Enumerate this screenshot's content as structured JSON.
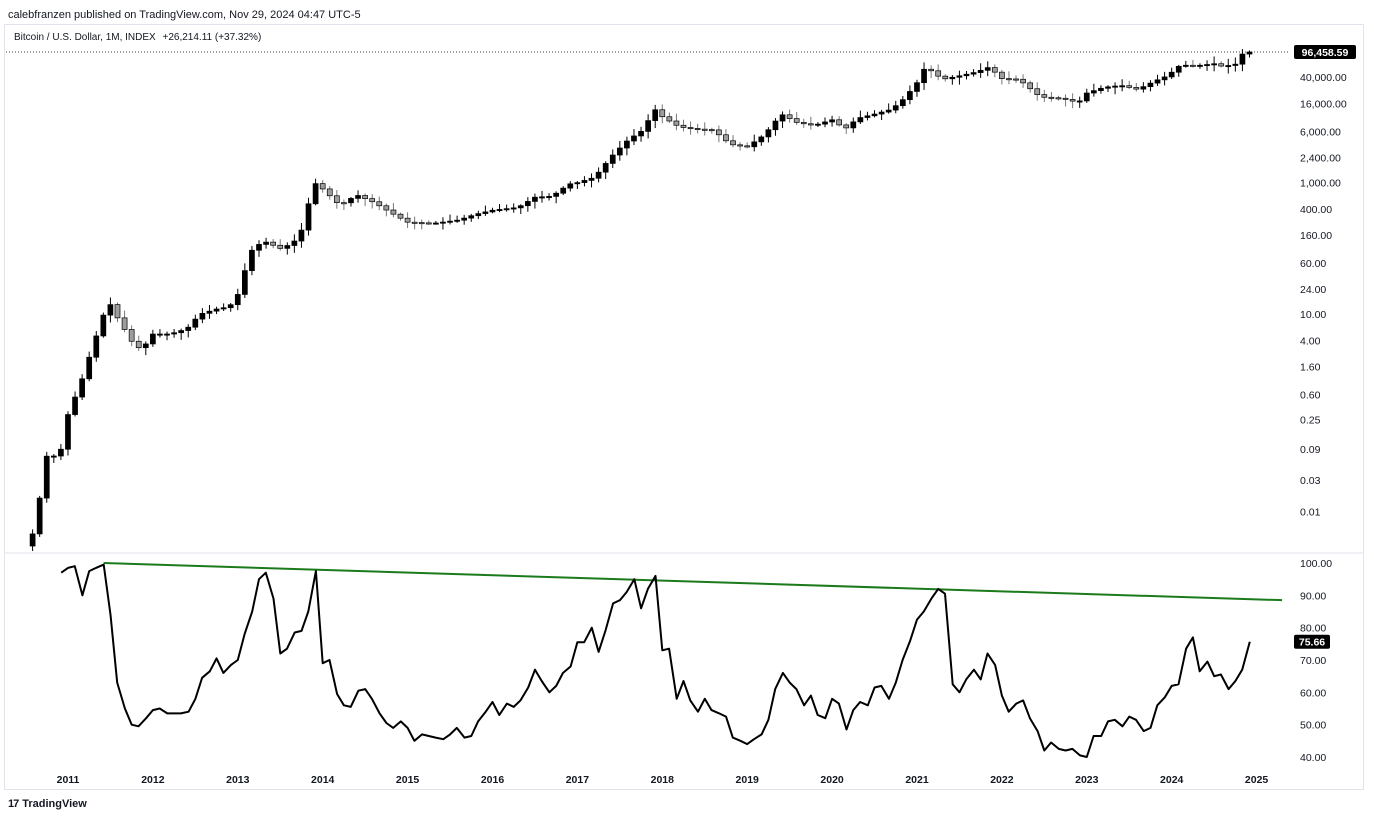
{
  "header": {
    "publisher_line": "calebfranzen published on TradingView.com, Nov 29, 2024 04:47 UTC-5"
  },
  "legend": {
    "symbol": "Bitcoin / U.S. Dollar, 1M, INDEX",
    "change": "+26,214.11 (+37.32%)"
  },
  "footer": {
    "logo_glyph": "17",
    "brand": "TradingView"
  },
  "colors": {
    "candle_up": "#000000",
    "candle_down": "#9e9e9e",
    "trendline": "#1b7a1b",
    "indicator_line": "#000000",
    "last_label_bg": "#000000"
  },
  "chart_data": [
    {
      "type": "candlestick",
      "scale": "log",
      "timeframe": "1M",
      "last_price_label": "96,458.59",
      "last_price": 96458.59,
      "y_ticks": [
        "40,000.00",
        "16,000.00",
        "6,000.00",
        "2,400.00",
        "1,000.00",
        "400.00",
        "160.00",
        "60.00",
        "24.00",
        "10.00",
        "4.00",
        "1.60",
        "0.60",
        "0.25",
        "0.09",
        "0.03",
        "0.01"
      ],
      "y_tick_values": [
        40000,
        16000,
        6000,
        2400,
        1000,
        400,
        160,
        60,
        24,
        10,
        4,
        1.6,
        0.6,
        0.25,
        0.09,
        0.03,
        0.01
      ],
      "x_ticks": [
        "2011",
        "2012",
        "2013",
        "2014",
        "2015",
        "2016",
        "2017",
        "2018",
        "2019",
        "2020",
        "2021",
        "2022",
        "2023",
        "2024",
        "2025"
      ],
      "x_tick_values": [
        2011,
        2012,
        2013,
        2014,
        2015,
        2016,
        2017,
        2018,
        2019,
        2020,
        2021,
        2022,
        2023,
        2024,
        2025
      ],
      "close_path": [
        [
          2010.5,
          0.003
        ],
        [
          2010.6,
          0.005
        ],
        [
          2010.75,
          0.07
        ],
        [
          2010.9,
          0.07
        ],
        [
          2011.0,
          0.3
        ],
        [
          2011.15,
          0.9
        ],
        [
          2011.3,
          3.5
        ],
        [
          2011.42,
          10
        ],
        [
          2011.5,
          14
        ],
        [
          2011.6,
          8
        ],
        [
          2011.7,
          5
        ],
        [
          2011.8,
          3
        ],
        [
          2011.9,
          3.3
        ],
        [
          2012.0,
          5
        ],
        [
          2012.2,
          5
        ],
        [
          2012.4,
          6
        ],
        [
          2012.55,
          10
        ],
        [
          2012.75,
          12
        ],
        [
          2012.9,
          13
        ],
        [
          2013.0,
          20
        ],
        [
          2013.15,
          90
        ],
        [
          2013.3,
          130
        ],
        [
          2013.5,
          100
        ],
        [
          2013.65,
          120
        ],
        [
          2013.75,
          190
        ],
        [
          2013.9,
          1000
        ],
        [
          2014.0,
          800
        ],
        [
          2014.2,
          450
        ],
        [
          2014.4,
          650
        ],
        [
          2014.6,
          500
        ],
        [
          2014.8,
          350
        ],
        [
          2015.0,
          250
        ],
        [
          2015.3,
          240
        ],
        [
          2015.6,
          270
        ],
        [
          2015.8,
          330
        ],
        [
          2016.0,
          380
        ],
        [
          2016.3,
          420
        ],
        [
          2016.5,
          600
        ],
        [
          2016.7,
          620
        ],
        [
          2016.9,
          950
        ],
        [
          2017.0,
          1000
        ],
        [
          2017.2,
          1200
        ],
        [
          2017.4,
          2500
        ],
        [
          2017.6,
          4500
        ],
        [
          2017.75,
          6000
        ],
        [
          2017.92,
          13000
        ],
        [
          2018.0,
          10000
        ],
        [
          2018.2,
          7000
        ],
        [
          2018.4,
          6500
        ],
        [
          2018.6,
          6300
        ],
        [
          2018.8,
          3800
        ],
        [
          2019.0,
          3500
        ],
        [
          2019.2,
          5300
        ],
        [
          2019.4,
          11000
        ],
        [
          2019.6,
          8000
        ],
        [
          2019.8,
          7500
        ],
        [
          2020.0,
          9000
        ],
        [
          2020.15,
          6500
        ],
        [
          2020.3,
          9500
        ],
        [
          2020.5,
          11000
        ],
        [
          2020.7,
          13000
        ],
        [
          2020.85,
          19000
        ],
        [
          2021.0,
          33000
        ],
        [
          2021.1,
          58000
        ],
        [
          2021.3,
          37000
        ],
        [
          2021.5,
          42000
        ],
        [
          2021.7,
          48000
        ],
        [
          2021.85,
          57000
        ],
        [
          2022.0,
          38000
        ],
        [
          2022.2,
          37000
        ],
        [
          2022.45,
          20000
        ],
        [
          2022.7,
          19000
        ],
        [
          2022.9,
          16500
        ],
        [
          2023.0,
          23000
        ],
        [
          2023.2,
          28000
        ],
        [
          2023.4,
          30000
        ],
        [
          2023.6,
          26000
        ],
        [
          2023.8,
          35000
        ],
        [
          2023.95,
          42000
        ],
        [
          2024.1,
          61000
        ],
        [
          2024.3,
          60000
        ],
        [
          2024.5,
          64000
        ],
        [
          2024.6,
          58000
        ],
        [
          2024.75,
          63000
        ],
        [
          2024.85,
          96458.59
        ]
      ]
    },
    {
      "type": "line",
      "last_value_label": "75.66",
      "last_value": 75.66,
      "y_ticks": [
        "100.00",
        "90.00",
        "80.00",
        "70.00",
        "60.00",
        "50.00",
        "40.00"
      ],
      "y_tick_values": [
        100,
        90,
        80,
        70,
        60,
        50,
        40
      ],
      "trendline": [
        [
          2011.42,
          100
        ],
        [
          2025.3,
          88.5
        ]
      ],
      "series": [
        {
          "values": [
            [
              2010.92,
              97
            ],
            [
              2011.0,
              98.5
            ],
            [
              2011.08,
              99
            ],
            [
              2011.17,
              90
            ],
            [
              2011.25,
              97.5
            ],
            [
              2011.33,
              98.5
            ],
            [
              2011.42,
              99.5
            ],
            [
              2011.5,
              84
            ],
            [
              2011.58,
              63
            ],
            [
              2011.67,
              55
            ],
            [
              2011.75,
              50
            ],
            [
              2011.83,
              49.5
            ],
            [
              2011.92,
              52
            ],
            [
              2012.0,
              54.5
            ],
            [
              2012.08,
              55
            ],
            [
              2012.17,
              53.5
            ],
            [
              2012.25,
              53.5
            ],
            [
              2012.33,
              53.5
            ],
            [
              2012.42,
              54
            ],
            [
              2012.5,
              58
            ],
            [
              2012.58,
              64.5
            ],
            [
              2012.67,
              66.5
            ],
            [
              2012.75,
              70.5
            ],
            [
              2012.83,
              66
            ],
            [
              2012.92,
              68.5
            ],
            [
              2013.0,
              70
            ],
            [
              2013.08,
              78
            ],
            [
              2013.17,
              85
            ],
            [
              2013.25,
              95
            ],
            [
              2013.33,
              97
            ],
            [
              2013.42,
              89
            ],
            [
              2013.5,
              72
            ],
            [
              2013.58,
              73.5
            ],
            [
              2013.67,
              78.5
            ],
            [
              2013.75,
              79
            ],
            [
              2013.83,
              85
            ],
            [
              2013.92,
              97.5
            ],
            [
              2014.0,
              69
            ],
            [
              2014.08,
              70
            ],
            [
              2014.17,
              59.5
            ],
            [
              2014.25,
              56
            ],
            [
              2014.33,
              55.5
            ],
            [
              2014.42,
              60.5
            ],
            [
              2014.5,
              61
            ],
            [
              2014.58,
              58
            ],
            [
              2014.67,
              53.5
            ],
            [
              2014.75,
              50.5
            ],
            [
              2014.83,
              49
            ],
            [
              2014.92,
              51
            ],
            [
              2015.0,
              49
            ],
            [
              2015.08,
              45
            ],
            [
              2015.17,
              47
            ],
            [
              2015.25,
              46.5
            ],
            [
              2015.33,
              46
            ],
            [
              2015.42,
              45.5
            ],
            [
              2015.5,
              47
            ],
            [
              2015.58,
              49
            ],
            [
              2015.67,
              46
            ],
            [
              2015.75,
              46.5
            ],
            [
              2015.83,
              51
            ],
            [
              2015.92,
              54
            ],
            [
              2016.0,
              57
            ],
            [
              2016.08,
              53
            ],
            [
              2016.17,
              56.5
            ],
            [
              2016.25,
              55.5
            ],
            [
              2016.33,
              57.5
            ],
            [
              2016.42,
              61.5
            ],
            [
              2016.5,
              67
            ],
            [
              2016.58,
              63.5
            ],
            [
              2016.67,
              60
            ],
            [
              2016.75,
              62
            ],
            [
              2016.83,
              66
            ],
            [
              2016.92,
              68
            ],
            [
              2017.0,
              75.5
            ],
            [
              2017.08,
              75.5
            ],
            [
              2017.17,
              80
            ],
            [
              2017.25,
              72.5
            ],
            [
              2017.33,
              79
            ],
            [
              2017.42,
              87.5
            ],
            [
              2017.5,
              88.5
            ],
            [
              2017.58,
              91
            ],
            [
              2017.67,
              95
            ],
            [
              2017.75,
              86
            ],
            [
              2017.83,
              92
            ],
            [
              2017.92,
              96
            ],
            [
              2018.0,
              73
            ],
            [
              2018.08,
              73.5
            ],
            [
              2018.17,
              58
            ],
            [
              2018.25,
              63.5
            ],
            [
              2018.33,
              57.5
            ],
            [
              2018.42,
              54
            ],
            [
              2018.5,
              58
            ],
            [
              2018.58,
              54.5
            ],
            [
              2018.67,
              53.5
            ],
            [
              2018.75,
              52.5
            ],
            [
              2018.83,
              46
            ],
            [
              2018.92,
              45
            ],
            [
              2019.0,
              44
            ],
            [
              2019.08,
              45.5
            ],
            [
              2019.17,
              47
            ],
            [
              2019.25,
              51.5
            ],
            [
              2019.33,
              61
            ],
            [
              2019.42,
              66
            ],
            [
              2019.5,
              63
            ],
            [
              2019.58,
              61
            ],
            [
              2019.67,
              56
            ],
            [
              2019.75,
              59
            ],
            [
              2019.83,
              53
            ],
            [
              2019.92,
              52
            ],
            [
              2020.0,
              58
            ],
            [
              2020.08,
              56.5
            ],
            [
              2020.17,
              48.5
            ],
            [
              2020.25,
              54.5
            ],
            [
              2020.33,
              57
            ],
            [
              2020.42,
              56
            ],
            [
              2020.5,
              61.5
            ],
            [
              2020.58,
              62
            ],
            [
              2020.67,
              58
            ],
            [
              2020.75,
              63
            ],
            [
              2020.83,
              70
            ],
            [
              2020.92,
              76
            ],
            [
              2021.0,
              82.5
            ],
            [
              2021.08,
              85
            ],
            [
              2021.17,
              89
            ],
            [
              2021.25,
              92
            ],
            [
              2021.33,
              90.5
            ],
            [
              2021.42,
              62.5
            ],
            [
              2021.5,
              60
            ],
            [
              2021.58,
              64
            ],
            [
              2021.67,
              67
            ],
            [
              2021.75,
              64
            ],
            [
              2021.83,
              72
            ],
            [
              2021.92,
              68.5
            ],
            [
              2022.0,
              59
            ],
            [
              2022.08,
              54
            ],
            [
              2022.17,
              56.5
            ],
            [
              2022.25,
              57.5
            ],
            [
              2022.33,
              52
            ],
            [
              2022.42,
              48
            ],
            [
              2022.5,
              42
            ],
            [
              2022.58,
              44.5
            ],
            [
              2022.67,
              42.5
            ],
            [
              2022.75,
              42
            ],
            [
              2022.83,
              42.5
            ],
            [
              2022.92,
              40.5
            ],
            [
              2023.0,
              40
            ],
            [
              2023.08,
              46.5
            ],
            [
              2023.17,
              46.5
            ],
            [
              2023.25,
              51
            ],
            [
              2023.33,
              51.5
            ],
            [
              2023.42,
              49.5
            ],
            [
              2023.5,
              52.5
            ],
            [
              2023.58,
              51.5
            ],
            [
              2023.67,
              48
            ],
            [
              2023.75,
              49
            ],
            [
              2023.83,
              56
            ],
            [
              2023.92,
              58.5
            ],
            [
              2024.0,
              62
            ],
            [
              2024.08,
              62.5
            ],
            [
              2024.17,
              73.5
            ],
            [
              2024.25,
              77
            ],
            [
              2024.33,
              66.5
            ],
            [
              2024.42,
              69.5
            ],
            [
              2024.5,
              65
            ],
            [
              2024.58,
              65.5
            ],
            [
              2024.67,
              61
            ],
            [
              2024.75,
              63.5
            ],
            [
              2024.83,
              67
            ],
            [
              2024.92,
              75.66
            ]
          ]
        }
      ]
    }
  ]
}
